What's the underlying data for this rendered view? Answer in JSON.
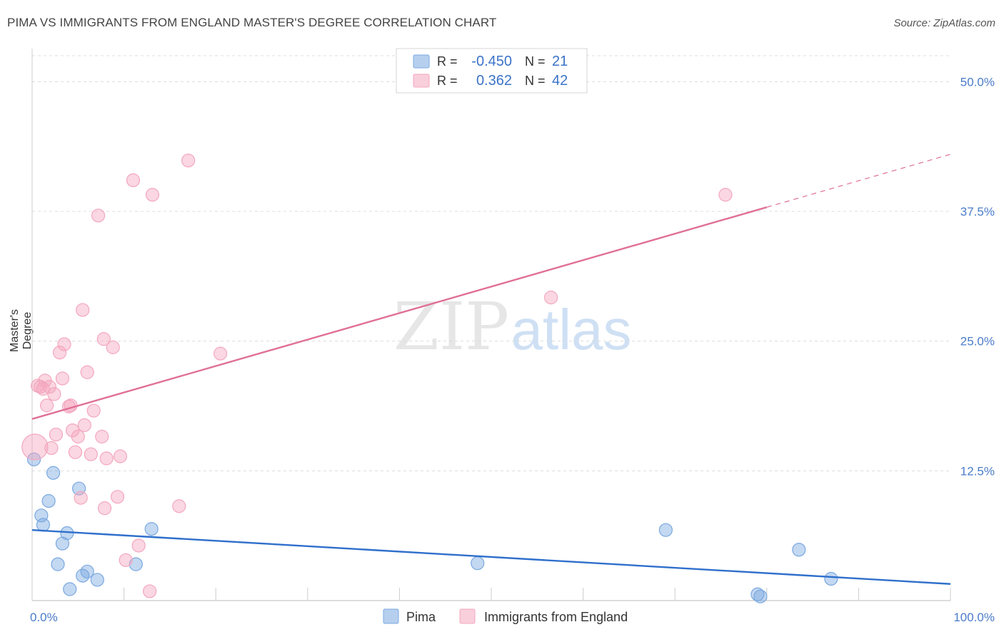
{
  "title": "PIMA VS IMMIGRANTS FROM ENGLAND MASTER'S DEGREE CORRELATION CHART",
  "source": "Source: ZipAtlas.com",
  "chart_data": {
    "type": "scatter",
    "title": "PIMA VS IMMIGRANTS FROM ENGLAND MASTER'S DEGREE CORRELATION CHART",
    "xlabel": "",
    "ylabel": "Master's Degree",
    "xlim": [
      0,
      100
    ],
    "ylim": [
      0,
      52.5
    ],
    "x_tick_labels": [
      "0.0%",
      "100.0%"
    ],
    "y_ticks": [
      12.5,
      25.0,
      37.5,
      50.0
    ],
    "y_tick_labels": [
      "12.5%",
      "25.0%",
      "37.5%",
      "50.0%"
    ],
    "grid": true,
    "watermark": "ZIPatlas",
    "legend_position": "top-center",
    "legend_stats": [
      {
        "r_label": "R =",
        "r_value": "-0.450",
        "n_label": "N =",
        "n_value": "21"
      },
      {
        "r_label": "R =",
        "r_value": "0.362",
        "n_label": "N =",
        "n_value": "42"
      }
    ],
    "series": [
      {
        "name": "Pima",
        "color": "#7aa8e0",
        "line_color": "#2f6fcc",
        "trend": {
          "x": [
            0,
            100
          ],
          "y": [
            6.8,
            1.6
          ]
        },
        "points": [
          {
            "x": 0.2,
            "y": 13.6
          },
          {
            "x": 1.0,
            "y": 8.2
          },
          {
            "x": 1.2,
            "y": 7.3
          },
          {
            "x": 1.8,
            "y": 9.6
          },
          {
            "x": 2.3,
            "y": 12.3
          },
          {
            "x": 2.8,
            "y": 3.5
          },
          {
            "x": 3.3,
            "y": 5.5
          },
          {
            "x": 3.8,
            "y": 6.5
          },
          {
            "x": 4.1,
            "y": 1.1
          },
          {
            "x": 5.1,
            "y": 10.8
          },
          {
            "x": 5.5,
            "y": 2.4
          },
          {
            "x": 6.0,
            "y": 2.8
          },
          {
            "x": 7.1,
            "y": 2.0
          },
          {
            "x": 11.3,
            "y": 3.5
          },
          {
            "x": 13.0,
            "y": 6.9
          },
          {
            "x": 48.5,
            "y": 3.6
          },
          {
            "x": 69.0,
            "y": 6.8
          },
          {
            "x": 79.0,
            "y": 0.6
          },
          {
            "x": 79.3,
            "y": 0.4
          },
          {
            "x": 83.5,
            "y": 4.9
          },
          {
            "x": 87.0,
            "y": 2.1
          }
        ]
      },
      {
        "name": "Immigrants from England",
        "color": "#f4a7bf",
        "line_color": "#e07097",
        "trend": {
          "x": [
            0,
            100
          ],
          "y": [
            17.5,
            43.0
          ]
        },
        "trend_solid_until": 80,
        "points": [
          {
            "x": 0.3,
            "y": 14.8,
            "big": true
          },
          {
            "x": 0.6,
            "y": 20.7
          },
          {
            "x": 0.9,
            "y": 20.6
          },
          {
            "x": 1.2,
            "y": 20.4
          },
          {
            "x": 1.4,
            "y": 21.2
          },
          {
            "x": 1.6,
            "y": 18.8
          },
          {
            "x": 1.9,
            "y": 20.6
          },
          {
            "x": 2.1,
            "y": 14.7
          },
          {
            "x": 2.4,
            "y": 19.9
          },
          {
            "x": 2.6,
            "y": 16.0
          },
          {
            "x": 3.0,
            "y": 23.9
          },
          {
            "x": 3.3,
            "y": 21.4
          },
          {
            "x": 3.5,
            "y": 24.7
          },
          {
            "x": 4.0,
            "y": 18.7
          },
          {
            "x": 4.2,
            "y": 18.8
          },
          {
            "x": 4.4,
            "y": 16.4
          },
          {
            "x": 4.7,
            "y": 14.3
          },
          {
            "x": 5.0,
            "y": 15.8
          },
          {
            "x": 5.3,
            "y": 9.9
          },
          {
            "x": 5.5,
            "y": 28.0
          },
          {
            "x": 5.7,
            "y": 16.9
          },
          {
            "x": 6.0,
            "y": 22.0
          },
          {
            "x": 6.4,
            "y": 14.1
          },
          {
            "x": 6.7,
            "y": 18.3
          },
          {
            "x": 7.2,
            "y": 37.1
          },
          {
            "x": 7.6,
            "y": 15.8
          },
          {
            "x": 7.8,
            "y": 25.2
          },
          {
            "x": 7.9,
            "y": 8.9
          },
          {
            "x": 8.1,
            "y": 13.7
          },
          {
            "x": 8.8,
            "y": 24.4
          },
          {
            "x": 9.3,
            "y": 10.0
          },
          {
            "x": 9.6,
            "y": 13.9
          },
          {
            "x": 10.2,
            "y": 3.9
          },
          {
            "x": 11.0,
            "y": 40.5
          },
          {
            "x": 11.6,
            "y": 5.3
          },
          {
            "x": 12.8,
            "y": 0.9
          },
          {
            "x": 13.1,
            "y": 39.1
          },
          {
            "x": 16.0,
            "y": 9.1
          },
          {
            "x": 17.0,
            "y": 42.4
          },
          {
            "x": 20.5,
            "y": 23.8
          },
          {
            "x": 56.5,
            "y": 29.2
          },
          {
            "x": 75.5,
            "y": 39.1
          }
        ]
      }
    ]
  }
}
